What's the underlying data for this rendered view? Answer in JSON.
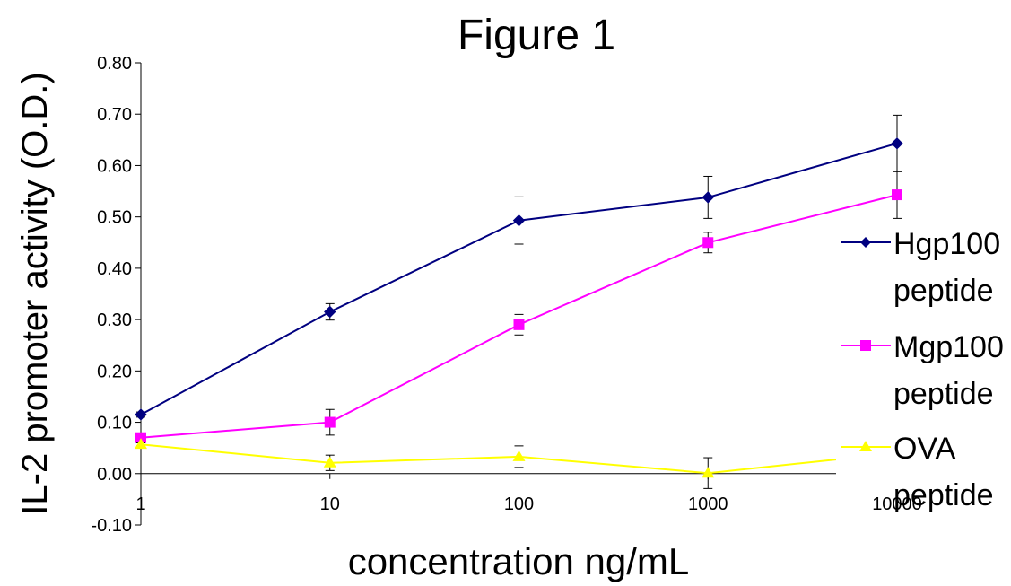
{
  "chart_data": {
    "type": "line",
    "title": "Figure 1",
    "xlabel": "concentration ng/mL",
    "ylabel": "IL-2 promoter activity (O.D.)",
    "x_scale": "log",
    "x": [
      1,
      10,
      100,
      1000,
      10000
    ],
    "x_tick_labels": [
      "1",
      "10",
      "100",
      "1000",
      "10000"
    ],
    "ylim": [
      -0.1,
      0.8
    ],
    "y_tick_labels": [
      "-0.10",
      "0.00",
      "0.10",
      "0.20",
      "0.30",
      "0.40",
      "0.50",
      "0.60",
      "0.70",
      "0.80"
    ],
    "grid": false,
    "legend_position": "right",
    "series": [
      {
        "name_lines": [
          "Hgp100",
          "peptide"
        ],
        "color": "#000080",
        "marker": "diamond",
        "values": [
          0.115,
          0.315,
          0.493,
          0.538,
          0.643
        ],
        "errors": [
          0.005,
          0.016,
          0.046,
          0.041,
          0.055
        ]
      },
      {
        "name_lines": [
          "Mgp100",
          "peptide"
        ],
        "color": "#ff00ff",
        "marker": "square",
        "values": [
          0.07,
          0.1,
          0.29,
          0.45,
          0.543
        ],
        "errors": [
          0.003,
          0.025,
          0.02,
          0.02,
          0.046
        ]
      },
      {
        "name_lines": [
          "OVA",
          "peptide"
        ],
        "color": "#ffff00",
        "marker": "triangle",
        "values": [
          0.057,
          0.021,
          0.033,
          0.001,
          0.04
        ],
        "errors": [
          0.003,
          0.015,
          0.021,
          0.03,
          0.005
        ]
      }
    ]
  }
}
